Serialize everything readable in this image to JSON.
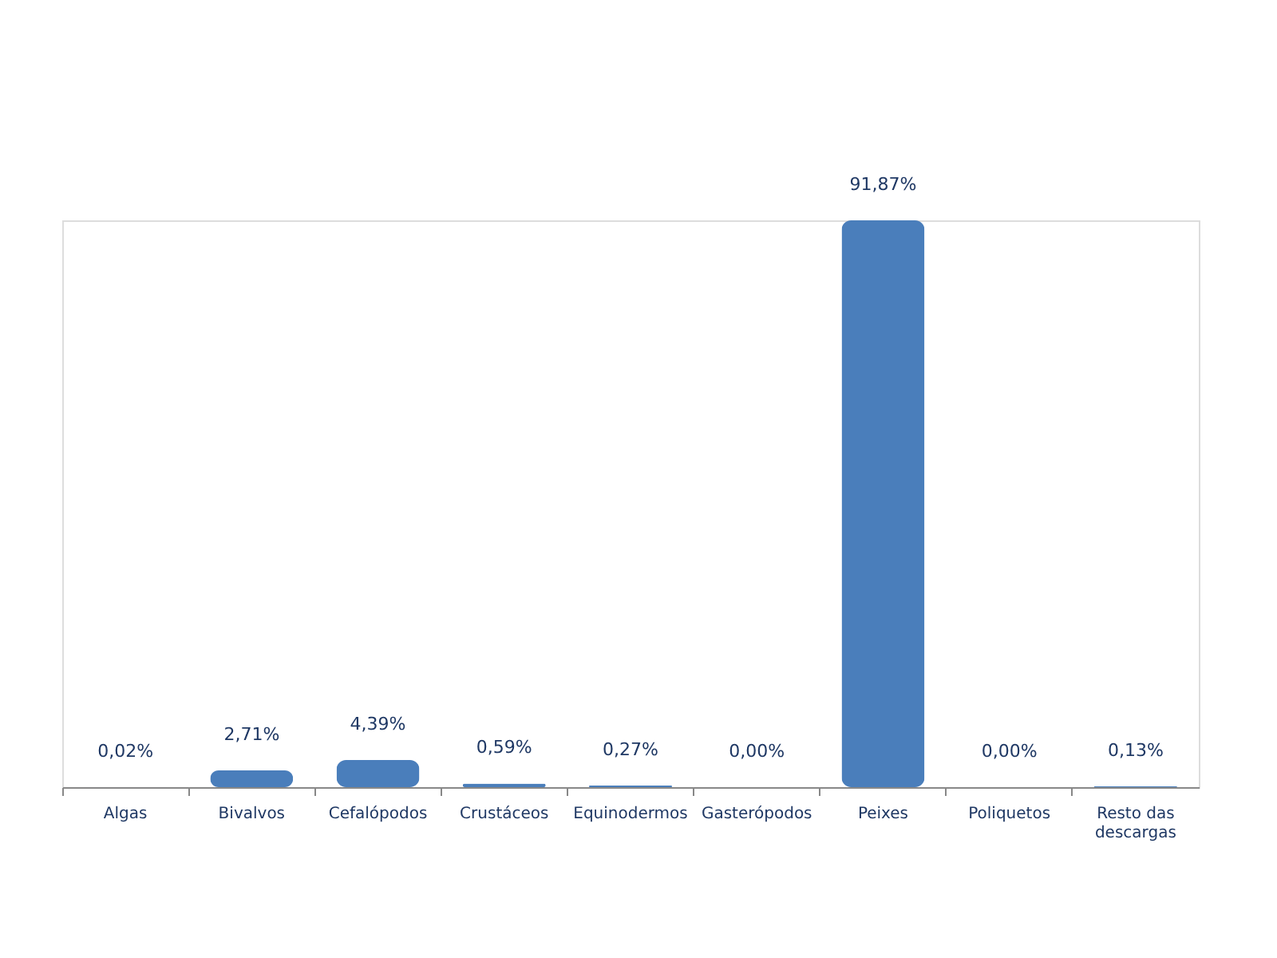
{
  "chart_data": {
    "type": "bar",
    "categories": [
      "Algas",
      "Bivalvos",
      "Cefalópodos",
      "Crustáceos",
      "Equinodermos",
      "Gasterópodos",
      "Peixes",
      "Poliquetos",
      "Resto das descargas"
    ],
    "values": [
      0.02,
      2.71,
      4.39,
      0.59,
      0.27,
      0.0,
      91.87,
      0.0,
      0.13
    ],
    "value_labels": [
      "0,02%",
      "2,71%",
      "4,39%",
      "0,59%",
      "0,27%",
      "0,00%",
      "91,87%",
      "0,00%",
      "0,13%"
    ],
    "color": "#4a7ebb"
  }
}
